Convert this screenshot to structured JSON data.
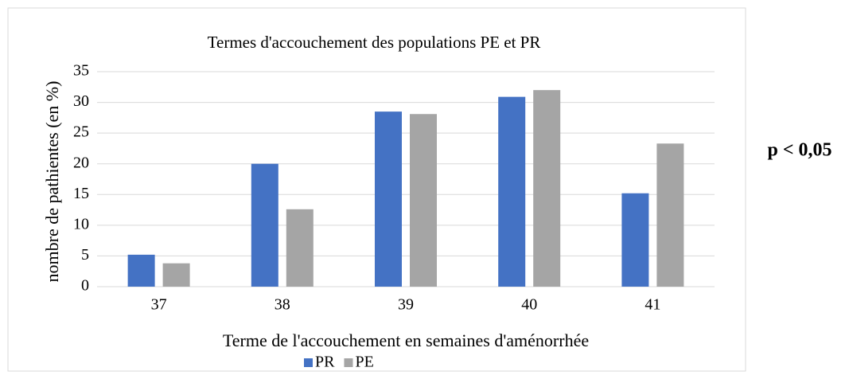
{
  "chart_data": {
    "type": "bar",
    "title": "Termes d'accouchement des populations PE et PR",
    "x_label": "Terme de l'accouchement en semaines d'aménorrhée",
    "y_label": "nombre de pathientes (en %)",
    "annotation": "p < 0,05",
    "categories": [
      "37",
      "38",
      "39",
      "40",
      "41"
    ],
    "series": [
      {
        "name": "PR",
        "color": "#4472c4",
        "values": [
          5.2,
          20,
          28.5,
          30.9,
          15.2
        ]
      },
      {
        "name": "PE",
        "color": "#a5a5a5",
        "values": [
          3.8,
          12.6,
          28.1,
          32,
          23.3
        ]
      }
    ],
    "ylim": [
      0,
      35
    ],
    "yticks": [
      0,
      5,
      10,
      15,
      20,
      25,
      30,
      35
    ],
    "grid": true,
    "legend": "bottom"
  }
}
